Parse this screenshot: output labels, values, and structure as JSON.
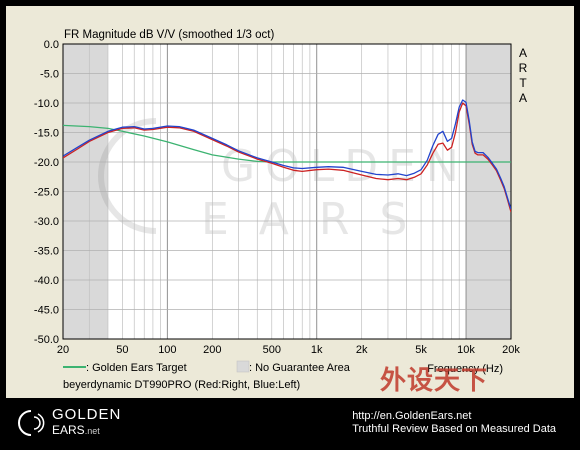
{
  "chart_data": {
    "type": "line",
    "title": "FR Magnitude dB V/V (smoothed 1/3 oct)",
    "side_label": [
      "A",
      "R",
      "T",
      "A"
    ],
    "xlabel": "Frequency (Hz)",
    "xscale": "log",
    "xlim": [
      20,
      20000
    ],
    "ylim": [
      -50,
      0
    ],
    "x_tick_labels": [
      {
        "value": 20,
        "label": "20"
      },
      {
        "value": 50,
        "label": "50"
      },
      {
        "value": 100,
        "label": "100"
      },
      {
        "value": 200,
        "label": "200"
      },
      {
        "value": 500,
        "label": "500"
      },
      {
        "value": 1000,
        "label": "1k"
      },
      {
        "value": 2000,
        "label": "2k"
      },
      {
        "value": 5000,
        "label": "5k"
      },
      {
        "value": 10000,
        "label": "10k"
      },
      {
        "value": 20000,
        "label": "20k"
      }
    ],
    "y_tick_labels": [
      "0.0",
      "-5.0",
      "-10.0",
      "-15.0",
      "-20.0",
      "-25.0",
      "-30.0",
      "-35.0",
      "-40.0",
      "-45.0",
      "-50.0"
    ],
    "grid": true,
    "shaded_regions": [
      [
        20,
        40
      ],
      [
        10000,
        20000
      ]
    ],
    "legend": [
      {
        "label": ": Golden Ears Target",
        "color": "#3cb371"
      },
      {
        "label": ": No Guarantee Area",
        "color": "#d9d9d9"
      }
    ],
    "caption": "beyerdynamic DT990PRO (Red:Right, Blue:Left)",
    "series": [
      {
        "color": "#3cb371",
        "x": [
          20,
          30,
          40,
          50,
          70,
          100,
          150,
          200,
          300,
          400,
          500,
          700,
          1000,
          2000,
          5000,
          10000,
          20000
        ],
        "y": [
          -13.8,
          -14.0,
          -14.3,
          -14.8,
          -15.6,
          -16.6,
          -17.9,
          -18.8,
          -19.5,
          -19.9,
          -20.0,
          -20.0,
          -20.0,
          -20.0,
          -20.0,
          -20.0,
          -20.0
        ]
      },
      {
        "color": "#cc2222",
        "x": [
          20,
          25,
          30,
          40,
          50,
          60,
          70,
          80,
          100,
          120,
          150,
          200,
          250,
          300,
          400,
          500,
          600,
          700,
          800,
          1000,
          1200,
          1500,
          2000,
          2500,
          3000,
          3500,
          4000,
          4500,
          5000,
          5500,
          6000,
          6500,
          7000,
          7500,
          8000,
          8500,
          9000,
          9500,
          10000,
          10500,
          11000,
          11500,
          12000,
          13000,
          14000,
          15000,
          16000,
          17000,
          18000,
          19000,
          20000
        ],
        "y": [
          -19.3,
          -17.8,
          -16.5,
          -15.0,
          -14.3,
          -14.2,
          -14.6,
          -14.5,
          -14.1,
          -14.2,
          -14.8,
          -16.2,
          -17.3,
          -18.3,
          -19.5,
          -20.2,
          -20.9,
          -21.4,
          -21.6,
          -21.3,
          -21.2,
          -21.4,
          -22.2,
          -22.8,
          -23.0,
          -22.8,
          -23.0,
          -22.6,
          -22.0,
          -20.5,
          -18.5,
          -17.0,
          -16.8,
          -18.0,
          -17.5,
          -15.0,
          -11.5,
          -10.0,
          -10.5,
          -13.5,
          -17.0,
          -18.5,
          -18.8,
          -18.8,
          -19.5,
          -20.5,
          -21.5,
          -23.0,
          -24.5,
          -26.5,
          -28.5
        ]
      },
      {
        "color": "#2244cc",
        "x": [
          20,
          25,
          30,
          40,
          50,
          60,
          70,
          80,
          100,
          120,
          150,
          200,
          250,
          300,
          400,
          500,
          600,
          700,
          800,
          1000,
          1200,
          1500,
          2000,
          2500,
          3000,
          3500,
          4000,
          4500,
          5000,
          5500,
          6000,
          6500,
          7000,
          7500,
          8000,
          8500,
          9000,
          9500,
          10000,
          10500,
          11000,
          11500,
          12000,
          13000,
          14000,
          15000,
          16000,
          17000,
          18000,
          19000,
          20000
        ],
        "y": [
          -19.0,
          -17.5,
          -16.3,
          -14.8,
          -14.1,
          -14.0,
          -14.4,
          -14.3,
          -13.9,
          -14.0,
          -14.6,
          -16.0,
          -17.1,
          -18.1,
          -19.3,
          -20.0,
          -20.6,
          -21.0,
          -21.1,
          -20.9,
          -20.8,
          -20.9,
          -21.6,
          -22.1,
          -22.2,
          -22.0,
          -22.3,
          -21.9,
          -21.3,
          -19.7,
          -17.2,
          -15.3,
          -14.8,
          -16.5,
          -16.0,
          -13.5,
          -10.7,
          -9.5,
          -9.9,
          -13.0,
          -16.6,
          -18.2,
          -18.4,
          -18.4,
          -19.2,
          -20.2,
          -21.2,
          -22.7,
          -24.2,
          -26.2,
          -28.0
        ]
      }
    ]
  },
  "watermark": {
    "line1": "GOLDEN",
    "line2": "EARS"
  },
  "footer": {
    "logo_line1": "GOLDEN",
    "logo_line2": "EARS",
    "logo_suffix": ".net",
    "url": "http://en.GoldenEars.net",
    "tagline": "Truthful Review Based on Measured Data"
  },
  "site_brand": "外设天下"
}
